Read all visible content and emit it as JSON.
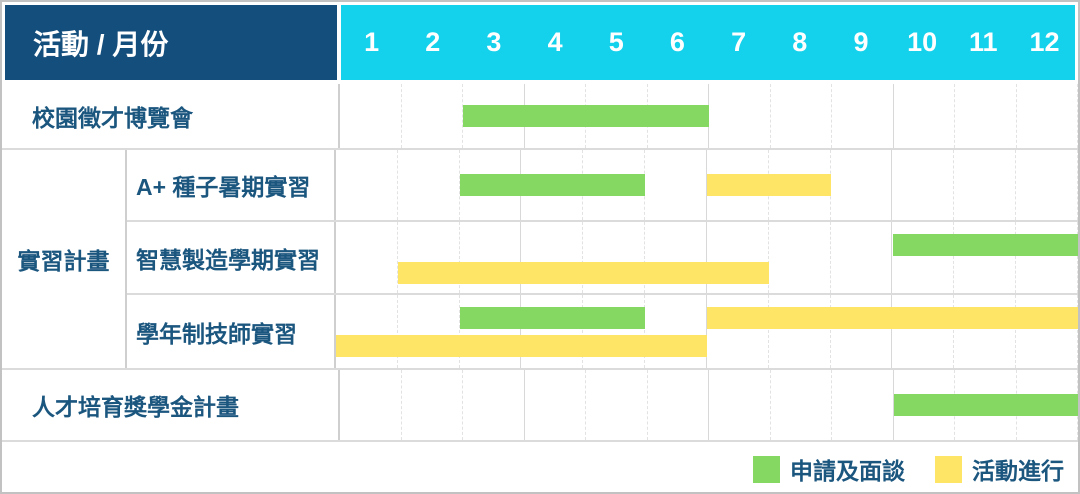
{
  "colors": {
    "header_bg": "#134E7C",
    "months_bg": "#14D1EC",
    "header_text": "#FFFFFF",
    "label_text": "#1B567F",
    "green": "#85D963",
    "yellow": "#FFE566",
    "border_row": "#DBDBDB",
    "border_col": "#CFCFCF",
    "border_month": "#E2E2E2",
    "border_quarter": "#D8D8D8"
  },
  "header": {
    "title": "活動 / 月份",
    "months": [
      "1",
      "2",
      "3",
      "4",
      "5",
      "6",
      "7",
      "8",
      "9",
      "10",
      "11",
      "12"
    ]
  },
  "chart_data": {
    "type": "gantt",
    "unit": "month",
    "x_range": [
      1,
      12
    ],
    "bar_types": {
      "apply": "申請及面談",
      "activity": "活動進行"
    },
    "rows": [
      {
        "group": null,
        "label": "校園徵才博覽會",
        "bars": [
          {
            "type": "apply",
            "start": 3,
            "end": 6,
            "line": "center"
          }
        ]
      },
      {
        "group": "實習計畫",
        "label": "A+ 種子暑期實習",
        "bars": [
          {
            "type": "apply",
            "start": 3,
            "end": 5,
            "line": "center"
          },
          {
            "type": "activity",
            "start": 7,
            "end": 8,
            "line": "center"
          }
        ]
      },
      {
        "group": "實習計畫",
        "label": "智慧製造學期實習",
        "bars": [
          {
            "type": "apply",
            "start": 10,
            "end": 12,
            "line": "top"
          },
          {
            "type": "activity",
            "start": 2,
            "end": 7,
            "line": "bottom"
          }
        ]
      },
      {
        "group": "實習計畫",
        "label": "學年制技師實習",
        "bars": [
          {
            "type": "apply",
            "start": 3,
            "end": 5,
            "line": "top"
          },
          {
            "type": "activity",
            "start": 7,
            "end": 12,
            "line": "top"
          },
          {
            "type": "activity",
            "start": 1,
            "end": 6,
            "line": "bottom"
          }
        ]
      },
      {
        "group": null,
        "label": "人才培育獎學金計畫",
        "bars": [
          {
            "type": "apply",
            "start": 10,
            "end": 12,
            "line": "center"
          }
        ]
      }
    ]
  },
  "legend": [
    {
      "key": "apply",
      "label": "申請及面談",
      "color": "#85D963"
    },
    {
      "key": "activity",
      "label": "活動進行",
      "color": "#FFE566"
    }
  ]
}
